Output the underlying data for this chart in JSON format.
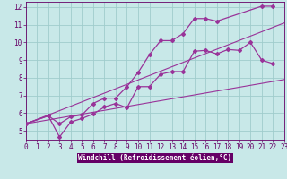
{
  "bg_color": "#c8e8e8",
  "grid_color": "#a0cccc",
  "line_color": "#993399",
  "xlabel": "Windchill (Refroidissement éolien,°C)",
  "xlabel_bg": "#660066",
  "xlim": [
    0,
    23
  ],
  "ylim": [
    4.5,
    12.3
  ],
  "xticks": [
    0,
    1,
    2,
    3,
    4,
    5,
    6,
    7,
    8,
    9,
    10,
    11,
    12,
    13,
    14,
    15,
    16,
    17,
    18,
    19,
    20,
    21,
    22,
    23
  ],
  "yticks": [
    5,
    6,
    7,
    8,
    9,
    10,
    11,
    12
  ],
  "tick_fontsize": 5.5,
  "lines": [
    {
      "x": [
        0,
        23
      ],
      "y": [
        5.4,
        7.9
      ],
      "marker": false
    },
    {
      "x": [
        0,
        23
      ],
      "y": [
        5.4,
        11.1
      ],
      "marker": false
    },
    {
      "x": [
        0,
        2,
        3,
        4,
        5,
        6,
        7,
        8,
        9,
        10,
        11,
        12,
        13,
        14,
        15,
        16,
        17,
        18,
        19,
        20,
        21,
        22
      ],
      "y": [
        5.4,
        5.85,
        4.65,
        5.5,
        5.7,
        5.95,
        6.35,
        6.55,
        6.3,
        7.5,
        7.5,
        8.2,
        8.35,
        8.35,
        9.5,
        9.55,
        9.35,
        9.6,
        9.55,
        10.0,
        9.0,
        8.8
      ],
      "marker": true
    },
    {
      "x": [
        0,
        2,
        3,
        4,
        5,
        6,
        7,
        8,
        9,
        10,
        11,
        12,
        13,
        14,
        15,
        16,
        17,
        21,
        22
      ],
      "y": [
        5.4,
        5.85,
        5.4,
        5.8,
        5.9,
        6.55,
        6.85,
        6.85,
        7.5,
        8.3,
        9.3,
        10.1,
        10.1,
        10.5,
        11.35,
        11.35,
        11.2,
        12.05,
        12.05
      ],
      "marker": true
    }
  ]
}
